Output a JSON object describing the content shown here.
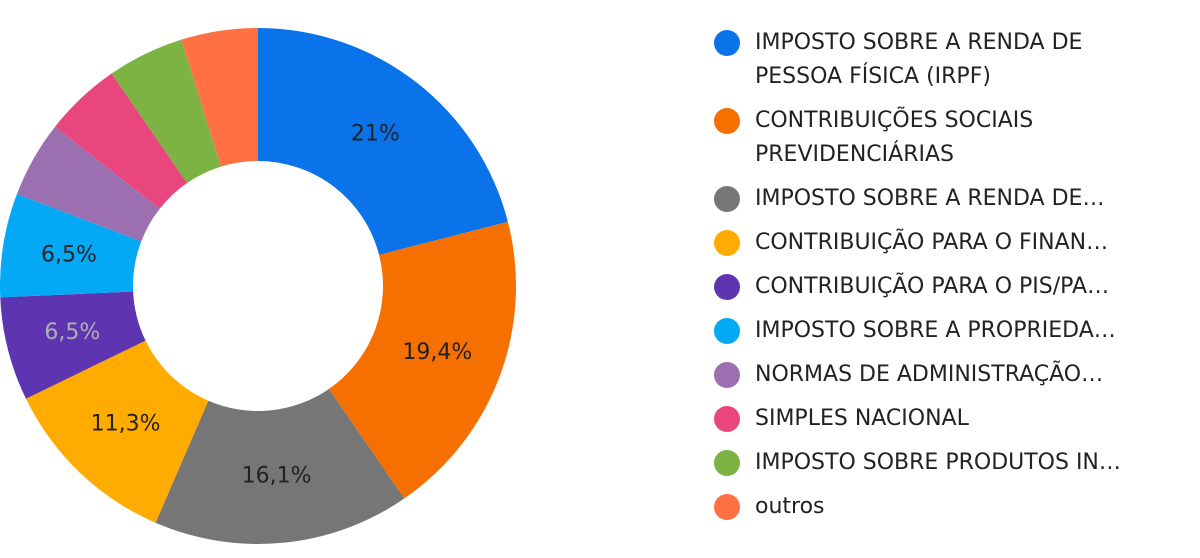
{
  "chart_data": {
    "type": "donut",
    "categories": [
      "IMPOSTO SOBRE A RENDA DE PESSOA FÍSICA (IRPF)",
      "CONTRIBUIÇÕES SOCIAIS PREVIDENCIÁRIAS",
      "IMPOSTO SOBRE A RENDA DE…",
      "CONTRIBUIÇÃO PARA O FINAN…",
      "CONTRIBUIÇÃO PARA O PIS/PA…",
      "IMPOSTO SOBRE A PROPRIEDA…",
      "NORMAS DE ADMINISTRAÇÃO…",
      "SIMPLES NACIONAL",
      "IMPOSTO SOBRE PRODUTOS IN…",
      "outros"
    ],
    "values": [
      21,
      19.4,
      16.1,
      11.3,
      6.5,
      6.5,
      4.8,
      4.8,
      4.8,
      4.8
    ],
    "value_labels": [
      "21%",
      "19,4%",
      "16,1%",
      "11,3%",
      "6,5%",
      "6,5%",
      null,
      null,
      null,
      null
    ],
    "colors": [
      "#0b73ea",
      "#f57000",
      "#767676",
      "#ffab00",
      "#5e35b1",
      "#03a9f4",
      "#9c6fb0",
      "#e8467c",
      "#7cb342",
      "#ff7043"
    ],
    "legend": "right"
  }
}
